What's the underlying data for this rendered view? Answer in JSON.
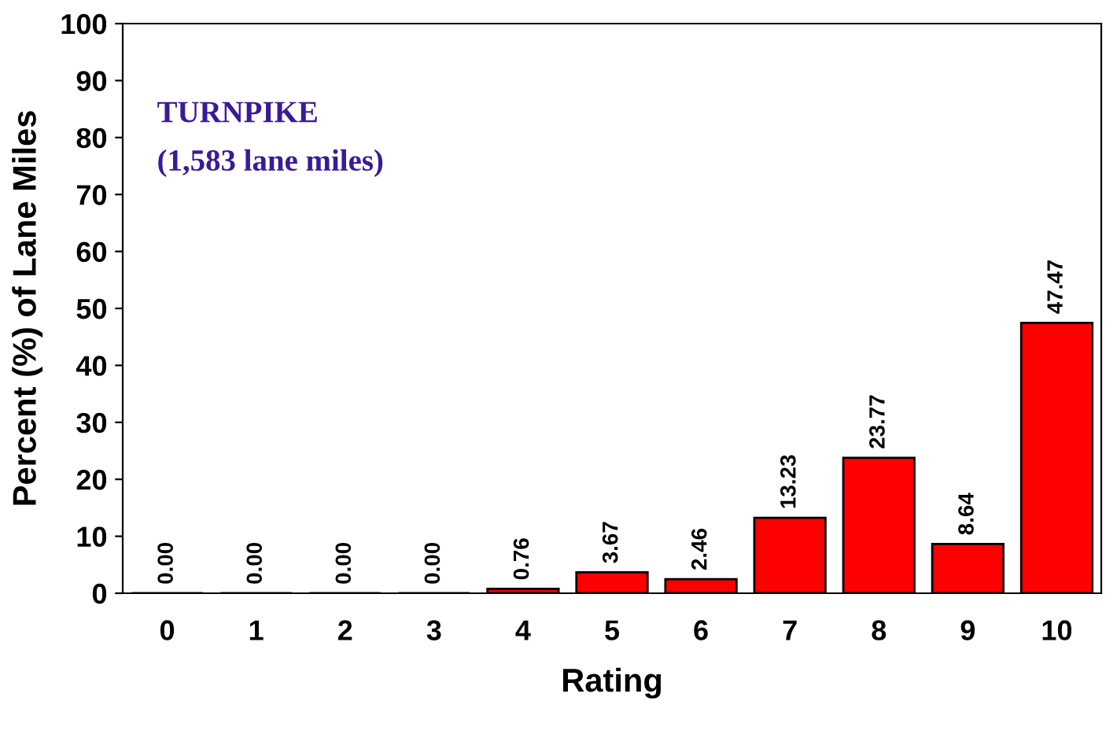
{
  "chart_data": {
    "type": "bar",
    "xlabel": "Rating",
    "ylabel": "Percent (%) of Lane Miles",
    "categories": [
      "0",
      "1",
      "2",
      "3",
      "4",
      "5",
      "6",
      "7",
      "8",
      "9",
      "10"
    ],
    "values": [
      0.0,
      0.0,
      0.0,
      0.0,
      0.76,
      3.67,
      2.46,
      13.23,
      23.77,
      8.64,
      47.47
    ],
    "value_labels": [
      "0.00",
      "0.00",
      "0.00",
      "0.00",
      "0.76",
      "3.67",
      "2.46",
      "13.23",
      "23.77",
      "8.64",
      "47.47"
    ],
    "color": "#ff0000",
    "ylim": [
      0,
      100
    ],
    "yticks": [
      0,
      10,
      20,
      30,
      40,
      50,
      60,
      70,
      80,
      90,
      100
    ],
    "grid": false,
    "annotations": [
      "TURNPIKE",
      "(1,583 lane miles)"
    ]
  }
}
